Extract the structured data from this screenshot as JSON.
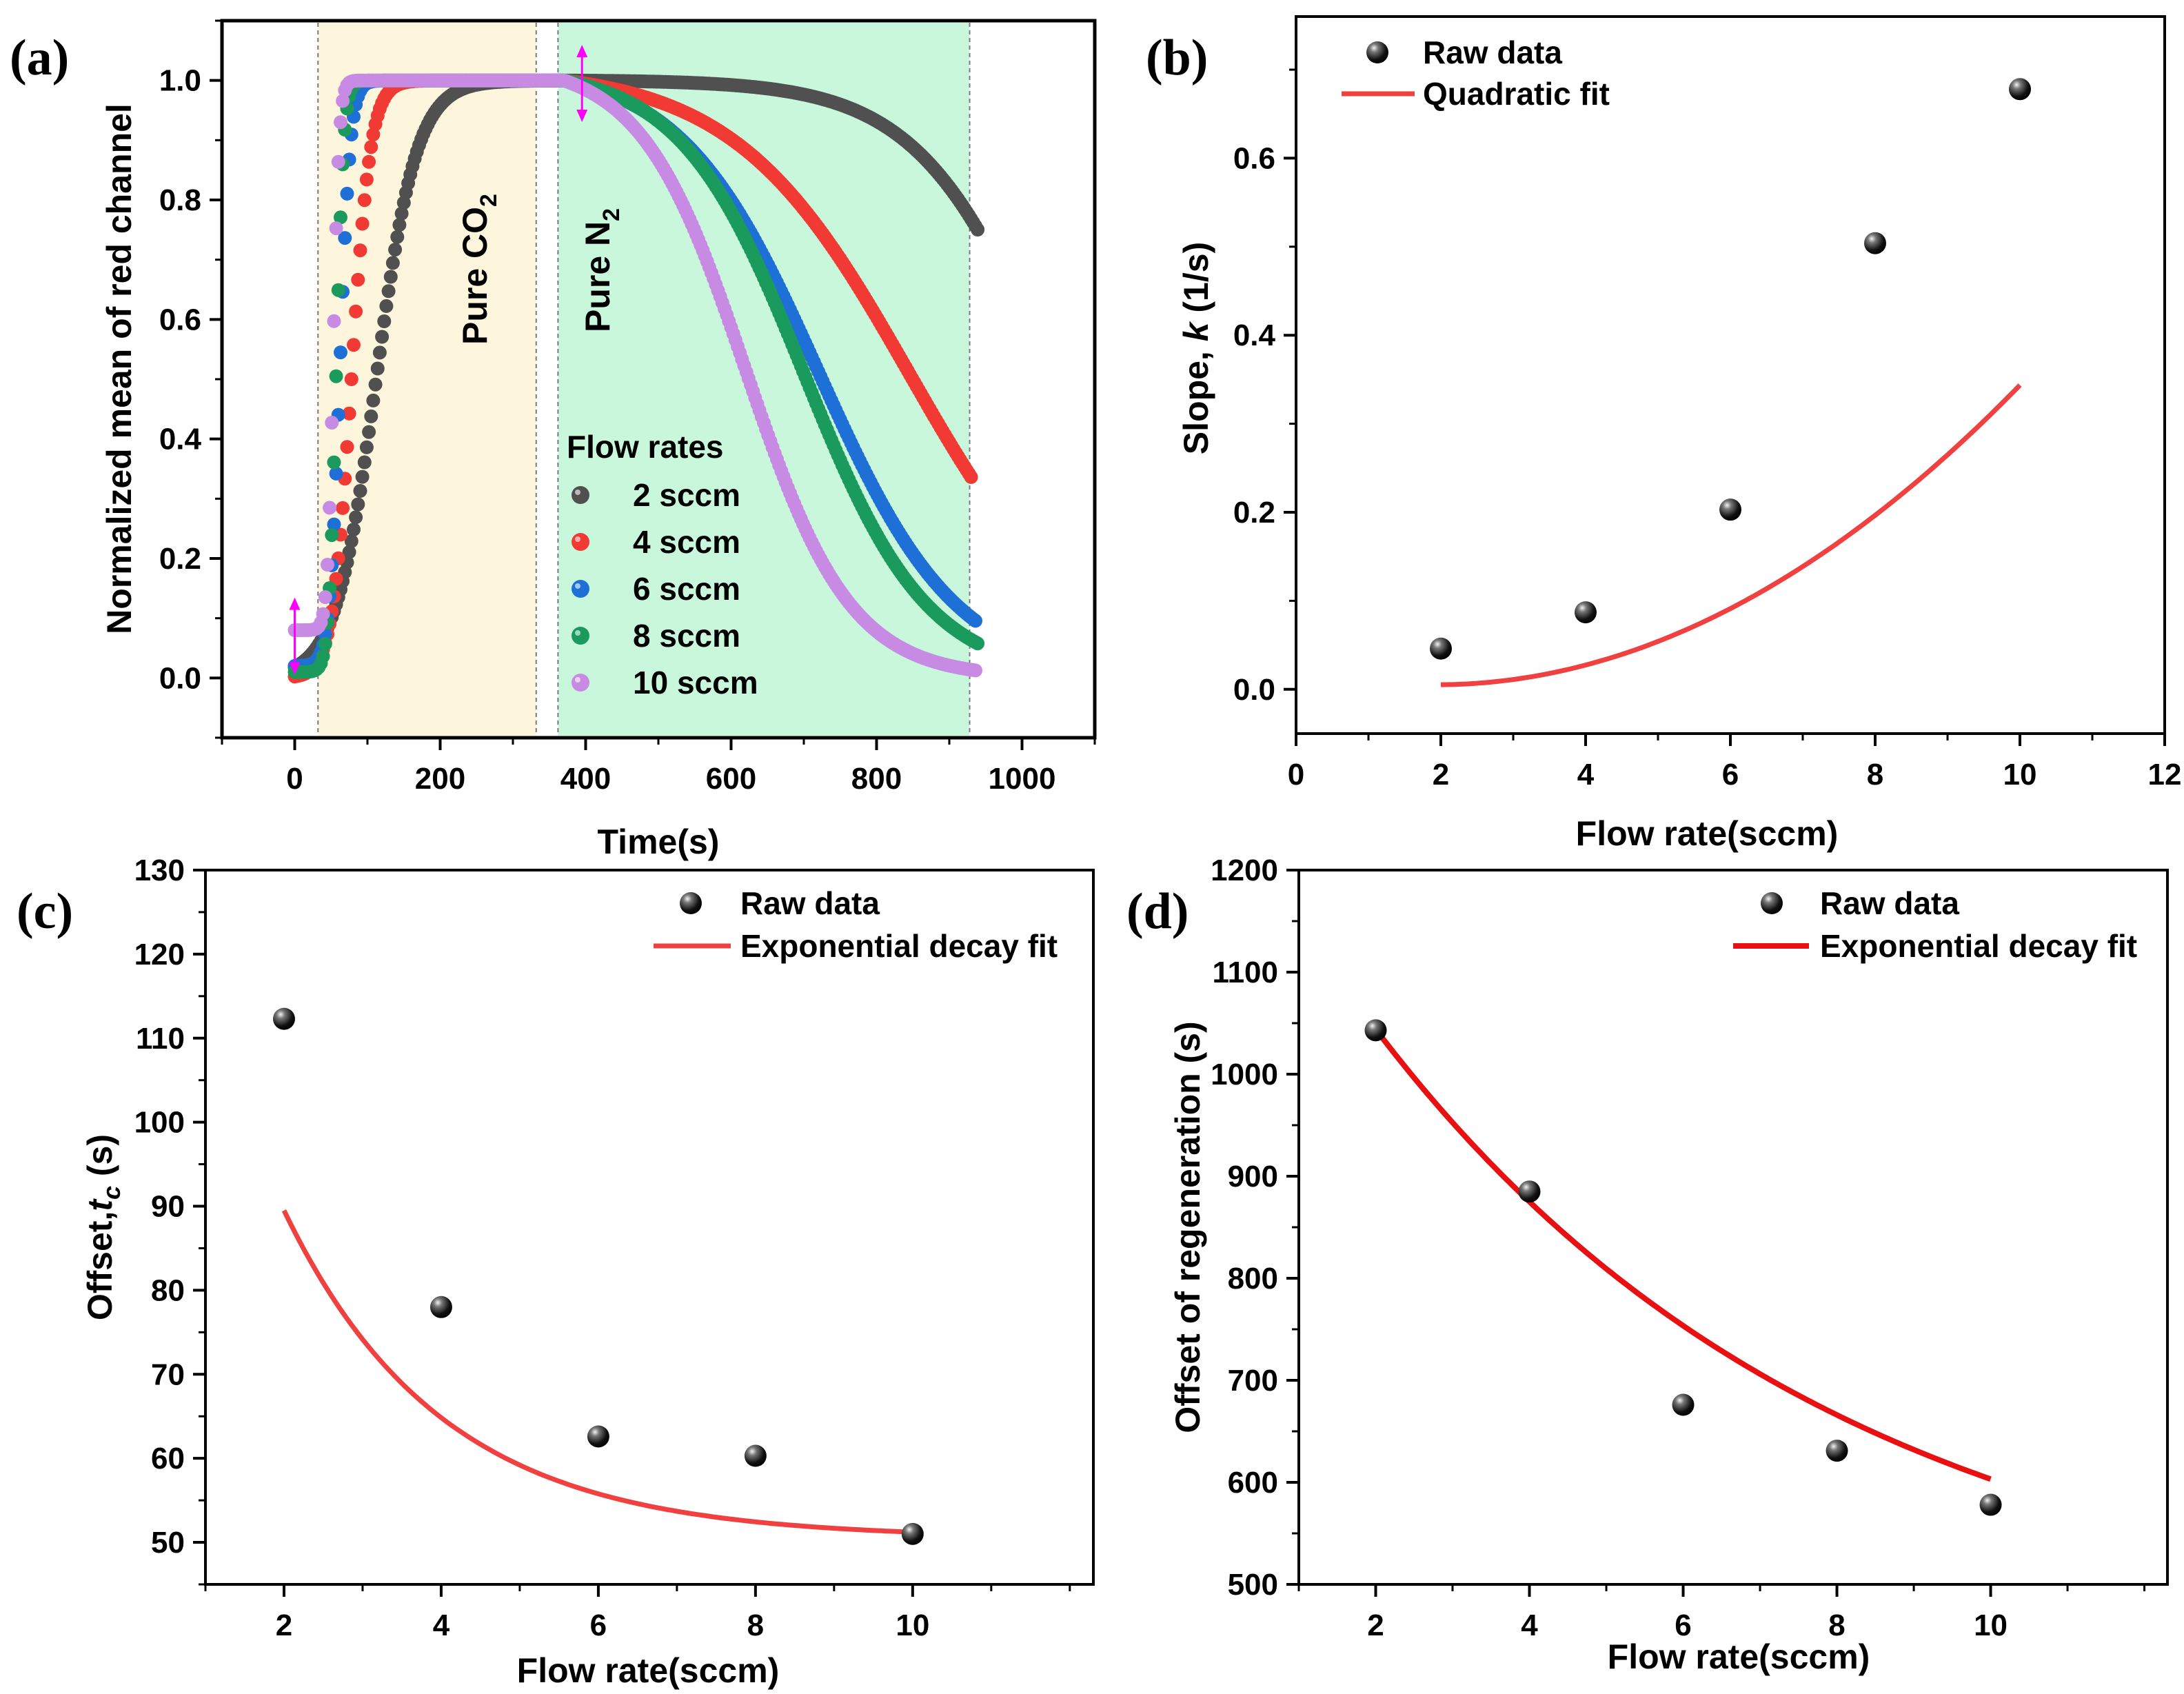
{
  "colors": {
    "fit": "#f04040",
    "fit_d": "#e81010",
    "co2_band": "#fdf5dc",
    "n2_band": "#c9f7dc",
    "marker": "#111111"
  },
  "chart_data": [
    {
      "id": "a",
      "panel_label": "(a)",
      "type": "scatter",
      "title": "",
      "xlabel": "Time(s)",
      "ylabel": "Normalized mean of red channel",
      "xlim": [
        -100,
        1100
      ],
      "ylim": [
        -0.1,
        1.1
      ],
      "xticks": [
        0,
        200,
        400,
        600,
        800,
        1000
      ],
      "xtick_labels": [
        "0",
        "200",
        "400",
        "600",
        "800",
        "1000"
      ],
      "yticks": [
        0.0,
        0.2,
        0.4,
        0.6,
        0.8,
        1.0
      ],
      "ytick_labels": [
        "0.0",
        "0.2",
        "0.4",
        "0.6",
        "0.8",
        "1.0"
      ],
      "regions": [
        {
          "name": "co2",
          "label_main": "Pure CO",
          "label_sub": "2",
          "x_start": 32,
          "x_end": 332
        },
        {
          "name": "n2",
          "label_main": "Pure N",
          "label_sub": "2",
          "x_start": 362,
          "x_end": 928
        }
      ],
      "legend_title": "Flow rates",
      "series": [
        {
          "name": "2 sccm",
          "color": "#505050",
          "y0": 0.0,
          "rise_mid": 112,
          "rise_w": 28,
          "fall_mid": 1040,
          "fall_w": 92,
          "x_end": 940
        },
        {
          "name": "4 sccm",
          "color": "#f23a35",
          "y0": 0.0,
          "rise_mid": 78,
          "rise_w": 13,
          "fall_mid": 845,
          "fall_w": 120,
          "x_end": 930
        },
        {
          "name": "6 sccm",
          "color": "#1e70d6",
          "y0": 0.02,
          "rise_mid": 62,
          "rise_w": 7,
          "fall_mid": 720,
          "fall_w": 95,
          "x_end": 938
        },
        {
          "name": "8 sccm",
          "color": "#1b9a5e",
          "y0": 0.01,
          "rise_mid": 57,
          "rise_w": 5,
          "fall_mid": 700,
          "fall_w": 85,
          "x_end": 940
        },
        {
          "name": "10 sccm",
          "color": "#c88be4",
          "y0": 0.08,
          "rise_mid": 53,
          "rise_w": 4,
          "fall_mid": 620,
          "fall_w": 72,
          "x_end": 938
        }
      ]
    },
    {
      "id": "b",
      "panel_label": "(b)",
      "type": "scatter",
      "title": "",
      "xlabel": "Flow rate(sccm)",
      "ylabel_main": "Slope, ",
      "ylabel_italic": "k",
      "ylabel_unit": " (1/s)",
      "xlim": [
        0,
        12
      ],
      "ylim": [
        -0.05,
        0.76
      ],
      "xticks": [
        0,
        2,
        4,
        6,
        8,
        10,
        12
      ],
      "xtick_labels": [
        "0",
        "2",
        "4",
        "6",
        "8",
        "10",
        "12"
      ],
      "yticks": [
        0.0,
        0.2,
        0.4,
        0.6
      ],
      "ytick_labels": [
        "0.0",
        "0.2",
        "0.4",
        "0.6"
      ],
      "x": [
        2,
        4,
        6,
        8,
        10
      ],
      "y": [
        0.046,
        0.087,
        0.203,
        0.504,
        0.678
      ],
      "fit": {
        "kind": "quadratic",
        "coef": [
          0.0246,
          -0.0201,
          0.0052
        ],
        "x_range": [
          2,
          10
        ]
      },
      "legend": {
        "points": "Raw data",
        "fit": "Quadratic fit",
        "placement": "top-left"
      }
    },
    {
      "id": "c",
      "panel_label": "(c)",
      "type": "scatter",
      "title": "",
      "xlabel": "Flow rate(sccm)",
      "ylabel_main": "Offset,",
      "ylabel_italic": "t",
      "ylabel_sub": "c",
      "ylabel_unit": " (s)",
      "xlim": [
        1,
        12.3
      ],
      "ylim": [
        45,
        130
      ],
      "xticks": [
        2,
        4,
        6,
        8,
        10
      ],
      "xtick_labels": [
        "2",
        "4",
        "6",
        "8",
        "10"
      ],
      "yticks": [
        50,
        60,
        70,
        80,
        90,
        100,
        110,
        120,
        130
      ],
      "ytick_labels": [
        "50",
        "60",
        "70",
        "80",
        "90",
        "100",
        "110",
        "120",
        "130"
      ],
      "x": [
        2,
        4,
        6,
        8,
        10
      ],
      "y": [
        112.3,
        78.0,
        62.6,
        60.3,
        51.0
      ],
      "fit": {
        "kind": "exp_decay",
        "y0": 50.5,
        "A": 106.0,
        "t": 2.0,
        "x_range": [
          2,
          10
        ]
      },
      "legend": {
        "points": "Raw data",
        "fit": "Exponential decay fit",
        "placement": "top-right"
      }
    },
    {
      "id": "d",
      "panel_label": "(d)",
      "type": "scatter",
      "title": "",
      "xlabel": "Flow rate(sccm)",
      "ylabel": "Offset of regeneration (s)",
      "xlim": [
        1,
        12.3
      ],
      "ylim": [
        500,
        1200
      ],
      "xticks": [
        2,
        4,
        6,
        8,
        10
      ],
      "xtick_labels": [
        "2",
        "4",
        "6",
        "8",
        "10"
      ],
      "yticks": [
        500,
        600,
        700,
        800,
        900,
        1000,
        1100,
        1200
      ],
      "ytick_labels": [
        "500",
        "600",
        "700",
        "800",
        "900",
        "1000",
        "1100",
        "1200"
      ],
      "x": [
        2,
        4,
        6,
        8,
        10
      ],
      "y": [
        1043,
        885,
        676,
        631,
        578
      ],
      "fit": {
        "kind": "exp_decay",
        "y0": 442,
        "A": 837,
        "t": 6.07,
        "x_range": [
          2,
          10
        ]
      },
      "legend": {
        "points": "Raw data",
        "fit": "Exponential decay fit",
        "placement": "top-right"
      }
    }
  ]
}
